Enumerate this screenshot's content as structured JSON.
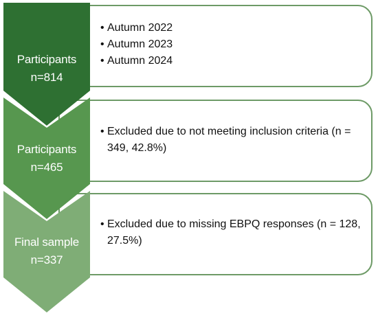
{
  "colors": {
    "stage1": "#2e7032",
    "stage2": "#57974f",
    "stage3": "#7fad76",
    "box_border": "#6d9a66",
    "box_fill": "#ffffff"
  },
  "stages": [
    {
      "label_line1": "Participants",
      "label_line2": "n=814",
      "items": [
        "Autumn 2022",
        "Autumn 2023",
        "Autumn 2024"
      ]
    },
    {
      "label_line1": "Participants",
      "label_line2": "n=465",
      "items": [
        "Excluded due to not meeting inclusion criteria (n = 349, 42.8%)"
      ]
    },
    {
      "label_line1": "Final sample",
      "label_line2": "n=337",
      "items": [
        "Excluded due to missing EBPQ responses (n = 128, 27.5%)"
      ]
    }
  ]
}
